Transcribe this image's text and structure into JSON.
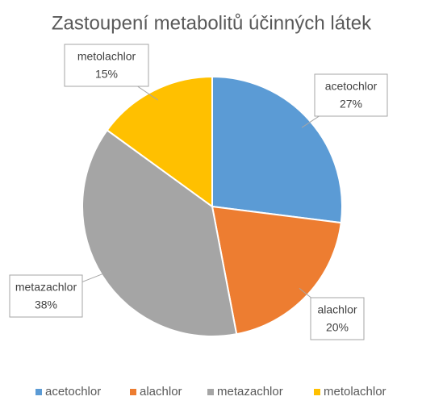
{
  "chart_data": {
    "type": "pie",
    "title": "Zastoupení metabolitů účinných látek",
    "categories": [
      "acetochlor",
      "alachlor",
      "metazachlor",
      "metolachlor"
    ],
    "values": [
      27,
      20,
      38,
      15
    ],
    "value_labels": [
      "27%",
      "20%",
      "38%",
      "15%"
    ],
    "colors": [
      "#5b9bd5",
      "#ed7d31",
      "#a5a5a5",
      "#ffc000"
    ],
    "legend": "bottom"
  }
}
